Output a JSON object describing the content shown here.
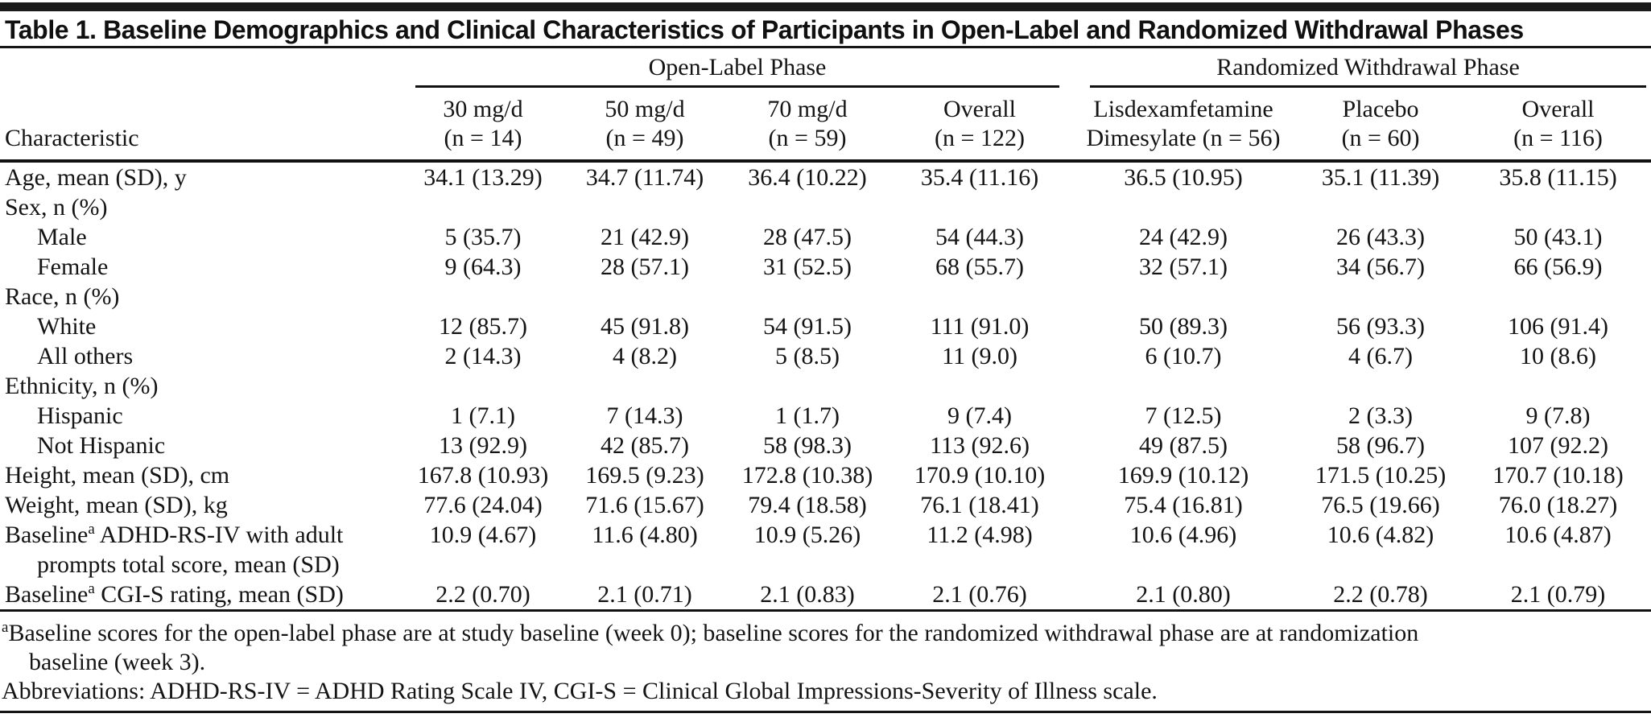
{
  "title": "Table 1. Baseline Demographics and Clinical Characteristics of Participants in Open-Label and Randomized Withdrawal Phases",
  "table": {
    "col_groups": [
      {
        "label": "Open-Label Phase",
        "span": 4
      },
      {
        "label": "Randomized Withdrawal Phase",
        "span": 3
      }
    ],
    "columns": [
      {
        "line1": "",
        "line2": "Characteristic"
      },
      {
        "line1": "30 mg/d",
        "line2": "(n = 14)"
      },
      {
        "line1": "50 mg/d",
        "line2": "(n = 49)"
      },
      {
        "line1": "70 mg/d",
        "line2": "(n = 59)"
      },
      {
        "line1": "Overall",
        "line2": "(n = 122)"
      },
      {
        "line1": "Lisdexamfetamine",
        "line2": "Dimesylate (n = 56)"
      },
      {
        "line1": "Placebo",
        "line2": "(n = 60)"
      },
      {
        "line1": "Overall",
        "line2": "(n = 116)"
      }
    ],
    "rows": [
      {
        "label": "Age, mean (SD), y",
        "indent": false,
        "values": [
          "34.1 (13.29)",
          "34.7 (11.74)",
          "36.4 (10.22)",
          "35.4 (11.16)",
          "36.5 (10.95)",
          "35.1 (11.39)",
          "35.8 (11.15)"
        ]
      },
      {
        "label": "Sex, n (%)",
        "indent": false,
        "values": [
          "",
          "",
          "",
          "",
          "",
          "",
          ""
        ]
      },
      {
        "label": "Male",
        "indent": true,
        "values": [
          "5 (35.7)",
          "21 (42.9)",
          "28 (47.5)",
          "54 (44.3)",
          "24 (42.9)",
          "26 (43.3)",
          "50 (43.1)"
        ]
      },
      {
        "label": "Female",
        "indent": true,
        "values": [
          "9 (64.3)",
          "28 (57.1)",
          "31 (52.5)",
          "68 (55.7)",
          "32 (57.1)",
          "34 (56.7)",
          "66 (56.9)"
        ]
      },
      {
        "label": "Race, n (%)",
        "indent": false,
        "values": [
          "",
          "",
          "",
          "",
          "",
          "",
          ""
        ]
      },
      {
        "label": "White",
        "indent": true,
        "values": [
          "12 (85.7)",
          "45 (91.8)",
          "54 (91.5)",
          "111 (91.0)",
          "50 (89.3)",
          "56 (93.3)",
          "106 (91.4)"
        ]
      },
      {
        "label": "All others",
        "indent": true,
        "values": [
          "2 (14.3)",
          "4 (8.2)",
          "5 (8.5)",
          "11 (9.0)",
          "6 (10.7)",
          "4 (6.7)",
          "10 (8.6)"
        ]
      },
      {
        "label": "Ethnicity, n (%)",
        "indent": false,
        "values": [
          "",
          "",
          "",
          "",
          "",
          "",
          ""
        ]
      },
      {
        "label": "Hispanic",
        "indent": true,
        "values": [
          "1 (7.1)",
          "7 (14.3)",
          "1 (1.7)",
          "9 (7.4)",
          "7 (12.5)",
          "2 (3.3)",
          "9 (7.8)"
        ]
      },
      {
        "label": "Not Hispanic",
        "indent": true,
        "values": [
          "13 (92.9)",
          "42 (85.7)",
          "58 (98.3)",
          "113 (92.6)",
          "49 (87.5)",
          "58 (96.7)",
          "107 (92.2)"
        ]
      },
      {
        "label": "Height, mean (SD), cm",
        "indent": false,
        "values": [
          "167.8 (10.93)",
          "169.5 (9.23)",
          "172.8 (10.38)",
          "170.9 (10.10)",
          "169.9 (10.12)",
          "171.5 (10.25)",
          "170.7 (10.18)"
        ]
      },
      {
        "label": "Weight, mean (SD), kg",
        "indent": false,
        "values": [
          "77.6 (24.04)",
          "71.6 (15.67)",
          "79.4 (18.58)",
          "76.1 (18.41)",
          "75.4 (16.81)",
          "76.5 (19.66)",
          "76.0 (18.27)"
        ]
      },
      {
        "label_pre": "Baseline",
        "label_sup": "a",
        "label_post": " ADHD-RS-IV with adult\nprompts total score, mean (SD)",
        "indent": false,
        "values": [
          "10.9 (4.67)",
          "11.6 (4.80)",
          "10.9 (5.26)",
          "11.2 (4.98)",
          "10.6 (4.96)",
          "10.6 (4.82)",
          "10.6 (4.87)"
        ]
      },
      {
        "label_pre": "Baseline",
        "label_sup": "a",
        "label_post": " CGI-S rating, mean (SD)",
        "indent": false,
        "values": [
          "2.2 (0.70)",
          "2.1 (0.71)",
          "2.1 (0.83)",
          "2.1 (0.76)",
          "2.1 (0.80)",
          "2.2 (0.78)",
          "2.1 (0.79)"
        ]
      }
    ]
  },
  "footnotes": {
    "a_sup": "a",
    "a_line1": "Baseline scores for the open-label phase are at study baseline (week 0); baseline scores for the randomized withdrawal phase are at randomization",
    "a_line2": "baseline (week 3).",
    "abbreviations": "Abbreviations: ADHD-RS-IV = ADHD Rating Scale IV, CGI-S = Clinical Global Impressions-Severity of Illness scale."
  },
  "colors": {
    "top_bar": "#1b1b1b",
    "rule": "#111111",
    "text": "#141414",
    "background": "#ffffff"
  }
}
